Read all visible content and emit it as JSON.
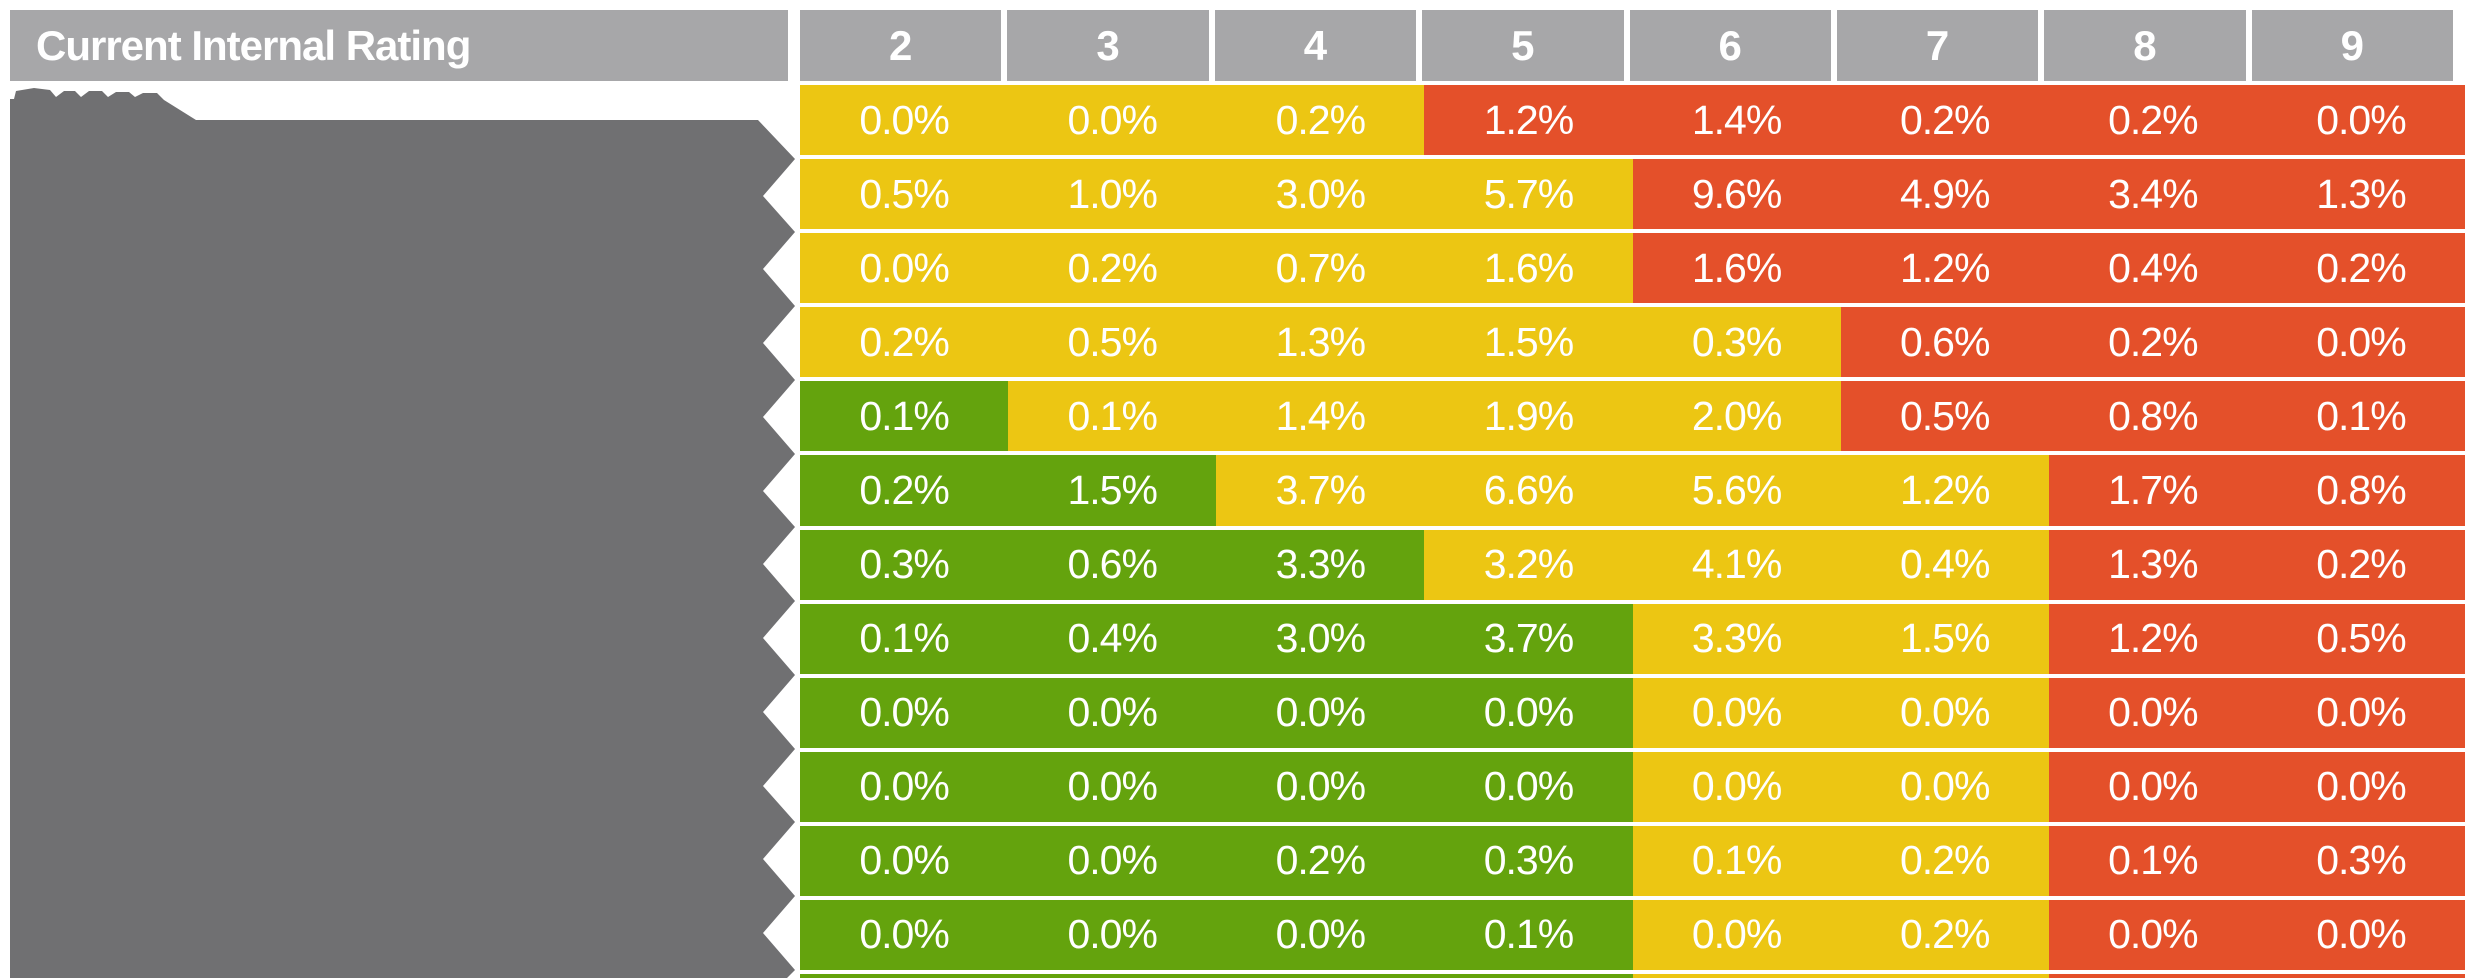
{
  "header": {
    "title": "Current Internal Rating",
    "columns": [
      "2",
      "3",
      "4",
      "5",
      "6",
      "7",
      "8",
      "9"
    ]
  },
  "colors": {
    "green": "#64a30d",
    "yellow": "#ecc613",
    "red": "#e4502a",
    "header_gray": "#a7a7a9",
    "redaction_gray": "#707072",
    "cell_text": "#ffffff"
  },
  "rows": [
    {
      "values": [
        "0.0%",
        "0.0%",
        "0.2%",
        "1.2%",
        "1.4%",
        "0.2%",
        "0.2%",
        "0.0%"
      ],
      "bands": [
        "yellow",
        "yellow",
        "yellow",
        "red",
        "red",
        "red",
        "red",
        "red"
      ]
    },
    {
      "values": [
        "0.5%",
        "1.0%",
        "3.0%",
        "5.7%",
        "9.6%",
        "4.9%",
        "3.4%",
        "1.3%"
      ],
      "bands": [
        "yellow",
        "yellow",
        "yellow",
        "yellow",
        "red",
        "red",
        "red",
        "red"
      ]
    },
    {
      "values": [
        "0.0%",
        "0.2%",
        "0.7%",
        "1.6%",
        "1.6%",
        "1.2%",
        "0.4%",
        "0.2%"
      ],
      "bands": [
        "yellow",
        "yellow",
        "yellow",
        "yellow",
        "red",
        "red",
        "red",
        "red"
      ]
    },
    {
      "values": [
        "0.2%",
        "0.5%",
        "1.3%",
        "1.5%",
        "0.3%",
        "0.6%",
        "0.2%",
        "0.0%"
      ],
      "bands": [
        "yellow",
        "yellow",
        "yellow",
        "yellow",
        "yellow",
        "red",
        "red",
        "red"
      ]
    },
    {
      "values": [
        "0.1%",
        "0.1%",
        "1.4%",
        "1.9%",
        "2.0%",
        "0.5%",
        "0.8%",
        "0.1%"
      ],
      "bands": [
        "green",
        "yellow",
        "yellow",
        "yellow",
        "yellow",
        "red",
        "red",
        "red"
      ]
    },
    {
      "values": [
        "0.2%",
        "1.5%",
        "3.7%",
        "6.6%",
        "5.6%",
        "1.2%",
        "1.7%",
        "0.8%"
      ],
      "bands": [
        "green",
        "green",
        "yellow",
        "yellow",
        "yellow",
        "yellow",
        "red",
        "red"
      ]
    },
    {
      "values": [
        "0.3%",
        "0.6%",
        "3.3%",
        "3.2%",
        "4.1%",
        "0.4%",
        "1.3%",
        "0.2%"
      ],
      "bands": [
        "green",
        "green",
        "green",
        "yellow",
        "yellow",
        "yellow",
        "red",
        "red"
      ]
    },
    {
      "values": [
        "0.1%",
        "0.4%",
        "3.0%",
        "3.7%",
        "3.3%",
        "1.5%",
        "1.2%",
        "0.5%"
      ],
      "bands": [
        "green",
        "green",
        "green",
        "green",
        "yellow",
        "yellow",
        "red",
        "red"
      ]
    },
    {
      "values": [
        "0.0%",
        "0.0%",
        "0.0%",
        "0.0%",
        "0.0%",
        "0.0%",
        "0.0%",
        "0.0%"
      ],
      "bands": [
        "green",
        "green",
        "green",
        "green",
        "yellow",
        "yellow",
        "red",
        "red"
      ]
    },
    {
      "values": [
        "0.0%",
        "0.0%",
        "0.0%",
        "0.0%",
        "0.0%",
        "0.0%",
        "0.0%",
        "0.0%"
      ],
      "bands": [
        "green",
        "green",
        "green",
        "green",
        "yellow",
        "yellow",
        "red",
        "red"
      ]
    },
    {
      "values": [
        "0.0%",
        "0.0%",
        "0.2%",
        "0.3%",
        "0.1%",
        "0.2%",
        "0.1%",
        "0.3%"
      ],
      "bands": [
        "green",
        "green",
        "green",
        "green",
        "yellow",
        "yellow",
        "red",
        "red"
      ]
    },
    {
      "values": [
        "0.0%",
        "0.0%",
        "0.0%",
        "0.1%",
        "0.0%",
        "0.2%",
        "0.0%",
        "0.0%"
      ],
      "bands": [
        "green",
        "green",
        "green",
        "green",
        "yellow",
        "yellow",
        "red",
        "red"
      ]
    }
  ],
  "chart_data": {
    "type": "heatmap",
    "title": "Current Internal Rating",
    "columns": [
      "2",
      "3",
      "4",
      "5",
      "6",
      "7",
      "8",
      "9"
    ],
    "row_labels_visible": false,
    "unit": "%",
    "values_percent": [
      [
        0.0,
        0.0,
        0.2,
        1.2,
        1.4,
        0.2,
        0.2,
        0.0
      ],
      [
        0.5,
        1.0,
        3.0,
        5.7,
        9.6,
        4.9,
        3.4,
        1.3
      ],
      [
        0.0,
        0.2,
        0.7,
        1.6,
        1.6,
        1.2,
        0.4,
        0.2
      ],
      [
        0.2,
        0.5,
        1.3,
        1.5,
        0.3,
        0.6,
        0.2,
        0.0
      ],
      [
        0.1,
        0.1,
        1.4,
        1.9,
        2.0,
        0.5,
        0.8,
        0.1
      ],
      [
        0.2,
        1.5,
        3.7,
        6.6,
        5.6,
        1.2,
        1.7,
        0.8
      ],
      [
        0.3,
        0.6,
        3.3,
        3.2,
        4.1,
        0.4,
        1.3,
        0.2
      ],
      [
        0.1,
        0.4,
        3.0,
        3.7,
        3.3,
        1.5,
        1.2,
        0.5
      ],
      [
        0.0,
        0.0,
        0.0,
        0.0,
        0.0,
        0.0,
        0.0,
        0.0
      ],
      [
        0.0,
        0.0,
        0.0,
        0.0,
        0.0,
        0.0,
        0.0,
        0.0
      ],
      [
        0.0,
        0.0,
        0.2,
        0.3,
        0.1,
        0.2,
        0.1,
        0.3
      ],
      [
        0.0,
        0.0,
        0.0,
        0.1,
        0.0,
        0.2,
        0.0,
        0.0
      ]
    ],
    "cell_band_colors": [
      [
        "yellow",
        "yellow",
        "yellow",
        "red",
        "red",
        "red",
        "red",
        "red"
      ],
      [
        "yellow",
        "yellow",
        "yellow",
        "yellow",
        "red",
        "red",
        "red",
        "red"
      ],
      [
        "yellow",
        "yellow",
        "yellow",
        "yellow",
        "red",
        "red",
        "red",
        "red"
      ],
      [
        "yellow",
        "yellow",
        "yellow",
        "yellow",
        "yellow",
        "red",
        "red",
        "red"
      ],
      [
        "green",
        "yellow",
        "yellow",
        "yellow",
        "yellow",
        "red",
        "red",
        "red"
      ],
      [
        "green",
        "green",
        "yellow",
        "yellow",
        "yellow",
        "yellow",
        "red",
        "red"
      ],
      [
        "green",
        "green",
        "green",
        "yellow",
        "yellow",
        "yellow",
        "red",
        "red"
      ],
      [
        "green",
        "green",
        "green",
        "green",
        "yellow",
        "yellow",
        "red",
        "red"
      ],
      [
        "green",
        "green",
        "green",
        "green",
        "yellow",
        "yellow",
        "red",
        "red"
      ],
      [
        "green",
        "green",
        "green",
        "green",
        "yellow",
        "yellow",
        "red",
        "red"
      ],
      [
        "green",
        "green",
        "green",
        "green",
        "yellow",
        "yellow",
        "red",
        "red"
      ],
      [
        "green",
        "green",
        "green",
        "green",
        "yellow",
        "yellow",
        "red",
        "red"
      ]
    ],
    "legend_position": "none",
    "grid": false
  }
}
